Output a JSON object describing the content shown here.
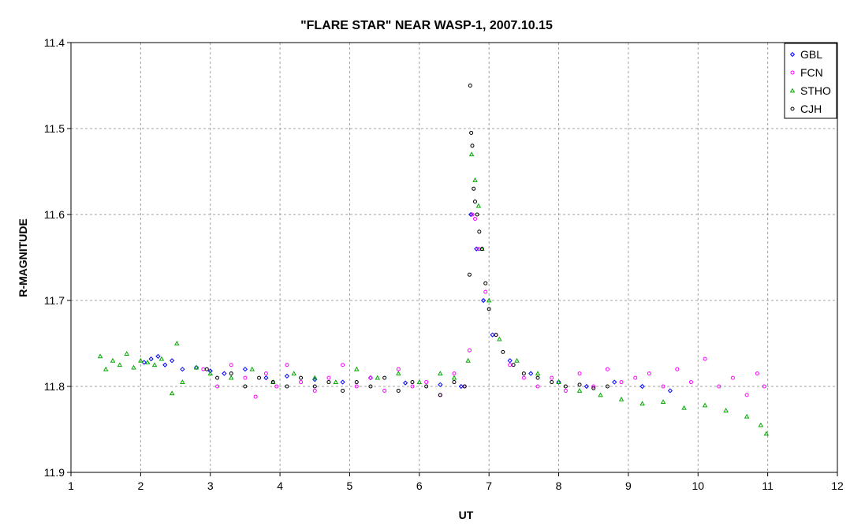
{
  "chart_data": {
    "type": "scatter",
    "title": "\"FLARE STAR\" NEAR WASP-1, 2007.10.15",
    "xlabel": "UT",
    "ylabel": "R-MAGNITUDE",
    "xlim": [
      1,
      12
    ],
    "ylim": [
      11.4,
      11.9
    ],
    "y_inverted": true,
    "x_ticks": [
      "1",
      "2",
      "3",
      "4",
      "5",
      "6",
      "7",
      "8",
      "9",
      "10",
      "11",
      "12"
    ],
    "y_ticks": [
      "11.4",
      "11.5",
      "11.6",
      "11.7",
      "11.8",
      "11.9"
    ],
    "grid": true,
    "legend_position": "top-right",
    "series": [
      {
        "name": "GBL",
        "marker": "diamond",
        "color": "#0000ff",
        "points": [
          [
            2.05,
            11.772
          ],
          [
            2.15,
            11.768
          ],
          [
            2.25,
            11.765
          ],
          [
            2.35,
            11.775
          ],
          [
            2.45,
            11.77
          ],
          [
            2.6,
            11.78
          ],
          [
            2.8,
            11.778
          ],
          [
            3.0,
            11.782
          ],
          [
            3.2,
            11.785
          ],
          [
            3.5,
            11.78
          ],
          [
            3.8,
            11.79
          ],
          [
            4.1,
            11.788
          ],
          [
            4.5,
            11.792
          ],
          [
            4.9,
            11.795
          ],
          [
            5.3,
            11.79
          ],
          [
            5.8,
            11.796
          ],
          [
            6.3,
            11.798
          ],
          [
            6.6,
            11.8
          ],
          [
            6.74,
            11.6
          ],
          [
            6.82,
            11.64
          ],
          [
            6.92,
            11.7
          ],
          [
            7.05,
            11.74
          ],
          [
            7.3,
            11.77
          ],
          [
            7.6,
            11.785
          ],
          [
            8.0,
            11.795
          ],
          [
            8.4,
            11.8
          ],
          [
            8.8,
            11.795
          ],
          [
            9.2,
            11.8
          ],
          [
            9.6,
            11.805
          ]
        ]
      },
      {
        "name": "FCN",
        "marker": "circle",
        "color": "#ff00ff",
        "points": [
          [
            2.9,
            11.78
          ],
          [
            3.1,
            11.8
          ],
          [
            3.3,
            11.775
          ],
          [
            3.5,
            11.79
          ],
          [
            3.65,
            11.812
          ],
          [
            3.8,
            11.785
          ],
          [
            3.95,
            11.8
          ],
          [
            4.1,
            11.775
          ],
          [
            4.3,
            11.795
          ],
          [
            4.5,
            11.805
          ],
          [
            4.7,
            11.79
          ],
          [
            4.9,
            11.775
          ],
          [
            5.1,
            11.8
          ],
          [
            5.3,
            11.79
          ],
          [
            5.5,
            11.805
          ],
          [
            5.7,
            11.78
          ],
          [
            5.9,
            11.8
          ],
          [
            6.1,
            11.795
          ],
          [
            6.3,
            11.81
          ],
          [
            6.5,
            11.785
          ],
          [
            6.65,
            11.8
          ],
          [
            6.72,
            11.758
          ],
          [
            6.76,
            11.6
          ],
          [
            6.8,
            11.605
          ],
          [
            6.85,
            11.64
          ],
          [
            6.95,
            11.69
          ],
          [
            7.1,
            11.74
          ],
          [
            7.3,
            11.775
          ],
          [
            7.5,
            11.79
          ],
          [
            7.7,
            11.8
          ],
          [
            7.9,
            11.79
          ],
          [
            8.1,
            11.805
          ],
          [
            8.3,
            11.785
          ],
          [
            8.5,
            11.8
          ],
          [
            8.7,
            11.78
          ],
          [
            8.9,
            11.795
          ],
          [
            9.1,
            11.79
          ],
          [
            9.3,
            11.785
          ],
          [
            9.5,
            11.8
          ],
          [
            9.7,
            11.78
          ],
          [
            9.9,
            11.795
          ],
          [
            10.1,
            11.768
          ],
          [
            10.3,
            11.8
          ],
          [
            10.5,
            11.79
          ],
          [
            10.7,
            11.81
          ],
          [
            10.85,
            11.785
          ],
          [
            10.95,
            11.8
          ]
        ]
      },
      {
        "name": "STHO",
        "marker": "triangle",
        "color": "#00aa00",
        "points": [
          [
            1.42,
            11.765
          ],
          [
            1.5,
            11.78
          ],
          [
            1.6,
            11.77
          ],
          [
            1.7,
            11.775
          ],
          [
            1.8,
            11.762
          ],
          [
            1.9,
            11.778
          ],
          [
            2.0,
            11.77
          ],
          [
            2.1,
            11.772
          ],
          [
            2.2,
            11.775
          ],
          [
            2.3,
            11.768
          ],
          [
            2.45,
            11.808
          ],
          [
            2.52,
            11.75
          ],
          [
            2.6,
            11.795
          ],
          [
            2.8,
            11.778
          ],
          [
            3.0,
            11.785
          ],
          [
            3.3,
            11.79
          ],
          [
            3.6,
            11.78
          ],
          [
            3.9,
            11.795
          ],
          [
            4.2,
            11.785
          ],
          [
            4.5,
            11.79
          ],
          [
            4.8,
            11.795
          ],
          [
            5.1,
            11.78
          ],
          [
            5.4,
            11.79
          ],
          [
            5.7,
            11.785
          ],
          [
            6.0,
            11.795
          ],
          [
            6.3,
            11.785
          ],
          [
            6.5,
            11.79
          ],
          [
            6.7,
            11.77
          ],
          [
            6.75,
            11.53
          ],
          [
            6.8,
            11.56
          ],
          [
            6.85,
            11.59
          ],
          [
            6.9,
            11.64
          ],
          [
            7.0,
            11.7
          ],
          [
            7.15,
            11.745
          ],
          [
            7.4,
            11.77
          ],
          [
            7.7,
            11.785
          ],
          [
            8.0,
            11.795
          ],
          [
            8.3,
            11.805
          ],
          [
            8.6,
            11.81
          ],
          [
            8.9,
            11.815
          ],
          [
            9.2,
            11.82
          ],
          [
            9.5,
            11.818
          ],
          [
            9.8,
            11.825
          ],
          [
            10.1,
            11.822
          ],
          [
            10.4,
            11.828
          ],
          [
            10.7,
            11.835
          ],
          [
            10.9,
            11.845
          ],
          [
            10.98,
            11.855
          ]
        ]
      },
      {
        "name": "CJH",
        "marker": "circle",
        "color": "#000000",
        "points": [
          [
            2.95,
            11.78
          ],
          [
            3.1,
            11.79
          ],
          [
            3.3,
            11.785
          ],
          [
            3.5,
            11.8
          ],
          [
            3.7,
            11.79
          ],
          [
            3.9,
            11.795
          ],
          [
            4.1,
            11.8
          ],
          [
            4.3,
            11.79
          ],
          [
            4.5,
            11.8
          ],
          [
            4.7,
            11.795
          ],
          [
            4.9,
            11.805
          ],
          [
            5.1,
            11.795
          ],
          [
            5.3,
            11.8
          ],
          [
            5.5,
            11.79
          ],
          [
            5.7,
            11.805
          ],
          [
            5.9,
            11.795
          ],
          [
            6.1,
            11.8
          ],
          [
            6.3,
            11.81
          ],
          [
            6.5,
            11.795
          ],
          [
            6.65,
            11.8
          ],
          [
            6.72,
            11.67
          ],
          [
            6.73,
            11.45
          ],
          [
            6.745,
            11.505
          ],
          [
            6.76,
            11.52
          ],
          [
            6.78,
            11.57
          ],
          [
            6.8,
            11.585
          ],
          [
            6.83,
            11.6
          ],
          [
            6.86,
            11.62
          ],
          [
            6.9,
            11.64
          ],
          [
            6.95,
            11.68
          ],
          [
            7.0,
            11.71
          ],
          [
            7.1,
            11.74
          ],
          [
            7.2,
            11.76
          ],
          [
            7.35,
            11.775
          ],
          [
            7.5,
            11.785
          ],
          [
            7.7,
            11.79
          ],
          [
            7.9,
            11.795
          ],
          [
            8.1,
            11.8
          ],
          [
            8.3,
            11.798
          ],
          [
            8.5,
            11.802
          ],
          [
            8.7,
            11.8
          ]
        ]
      }
    ]
  }
}
